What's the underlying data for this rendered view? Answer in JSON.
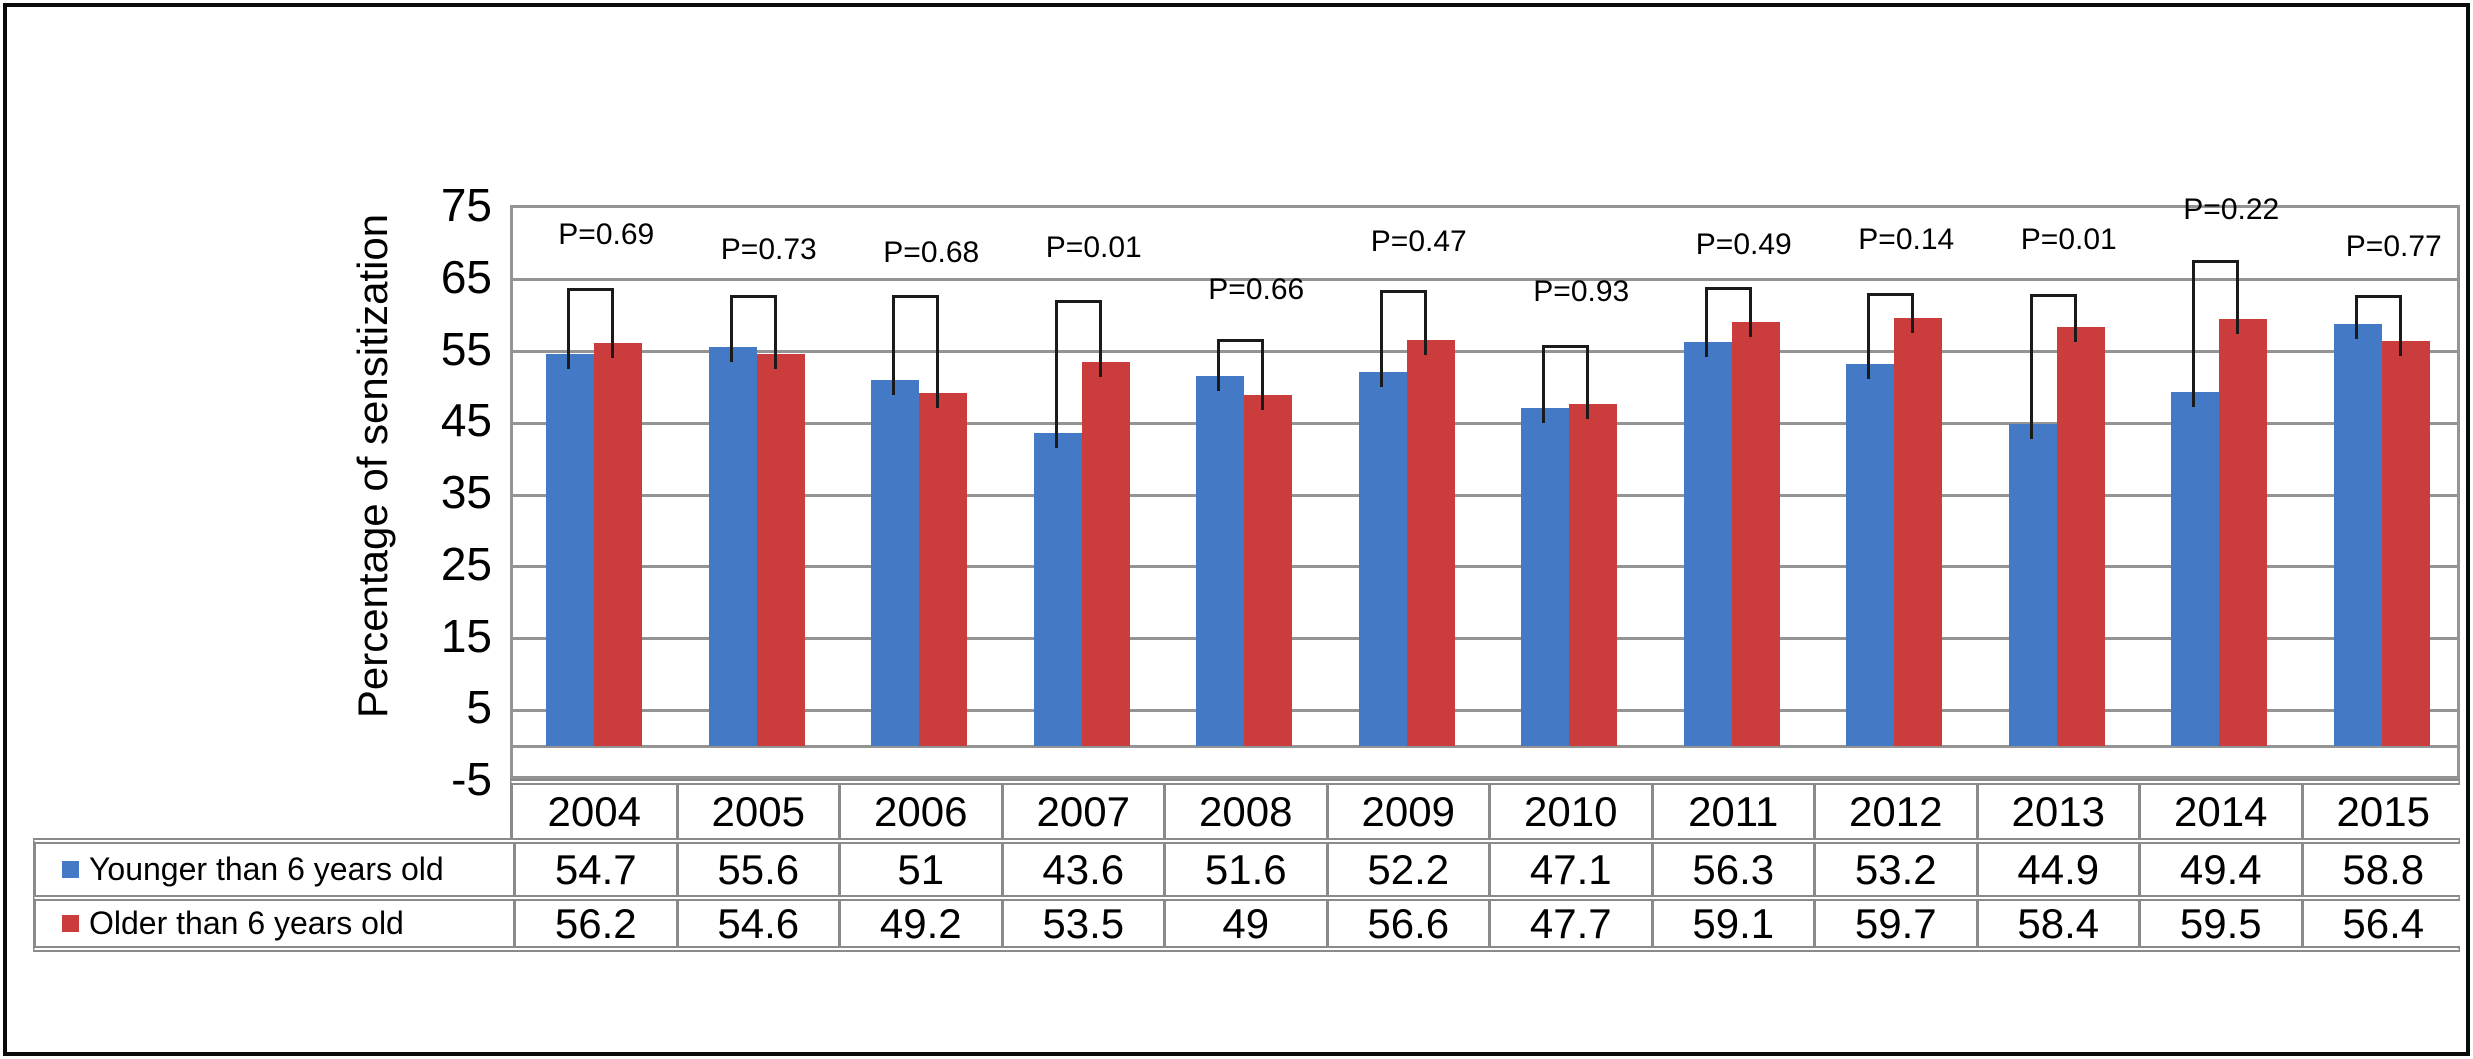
{
  "figure": {
    "background": "#ffffff",
    "frame_color": "#0a0a0a",
    "grid_color": "#949494",
    "table_border_color": "#8a8a8a",
    "annotation_line_color": "#1a1a1a"
  },
  "chart_data": {
    "type": "bar",
    "title": "",
    "xlabel": "",
    "ylabel": "Percentage of sensitization",
    "ylim": [
      -5,
      75
    ],
    "yticks": [
      75,
      65,
      55,
      45,
      35,
      25,
      15,
      5,
      -5
    ],
    "baseline": 0,
    "grid": true,
    "legend_position": "table-left",
    "categories": [
      "2004",
      "2005",
      "2006",
      "2007",
      "2008",
      "2009",
      "2010",
      "2011",
      "2012",
      "2013",
      "2014",
      "2015"
    ],
    "series": [
      {
        "name": "Younger than 6 years old",
        "color": "#4479C5",
        "values": [
          54.7,
          55.6,
          51,
          43.6,
          51.6,
          52.2,
          47.1,
          56.3,
          53.2,
          44.9,
          49.4,
          58.8
        ]
      },
      {
        "name": "Older than 6 years old",
        "color": "#CB3C3C",
        "values": [
          56.2,
          54.6,
          49.2,
          53.5,
          49,
          56.6,
          47.7,
          59.1,
          59.7,
          58.4,
          59.5,
          56.4
        ]
      }
    ],
    "annotations": [
      {
        "text": "P=0.69",
        "label_level": 70.8,
        "bracket_level": 63.4
      },
      {
        "text": "P=0.73",
        "label_level": 68.7,
        "bracket_level": 62.4
      },
      {
        "text": "P=0.68",
        "label_level": 68.3,
        "bracket_level": 62.4
      },
      {
        "text": "P=0.01",
        "label_level": 69.0,
        "bracket_level": 61.7
      },
      {
        "text": "P=0.66",
        "label_level": 63.1,
        "bracket_level": 56.3
      },
      {
        "text": "P=0.47",
        "label_level": 69.8,
        "bracket_level": 63.1
      },
      {
        "text": "P=0.93",
        "label_level": 62.9,
        "bracket_level": 55.5
      },
      {
        "text": "P=0.49",
        "label_level": 69.4,
        "bracket_level": 63.6
      },
      {
        "text": "P=0.14",
        "label_level": 70.1,
        "bracket_level": 62.7
      },
      {
        "text": "P=0.01",
        "label_level": 70.1,
        "bracket_level": 62.6
      },
      {
        "text": "P=0.22",
        "label_level": 74.3,
        "bracket_level": 67.3
      },
      {
        "text": "P=0.77",
        "label_level": 69.1,
        "bracket_level": 62.4
      }
    ]
  }
}
